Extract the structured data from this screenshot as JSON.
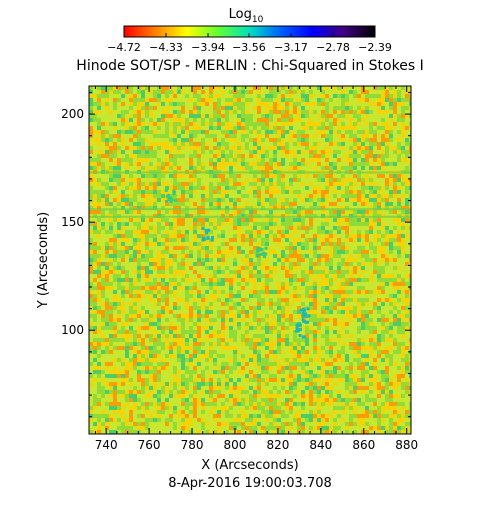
{
  "chart_data": {
    "type": "heatmap",
    "title": "Hinode SOT/SP - MERLIN : Chi-Squared in Stokes I",
    "xlabel": "X (Arcseconds)",
    "ylabel": "Y (Arcseconds)",
    "xlim": [
      732,
      882
    ],
    "ylim": [
      52,
      213
    ],
    "x_ticks": [
      740,
      760,
      780,
      800,
      820,
      840,
      860,
      880
    ],
    "y_ticks": [
      100,
      150,
      200
    ],
    "colorbar": {
      "label": "Log",
      "label_sub": "10",
      "range": [
        -4.72,
        -2.39
      ],
      "ticks": [
        "-4.72",
        "-4.33",
        "-3.94",
        "-3.56",
        "-3.17",
        "-2.78",
        "-2.39"
      ],
      "colors": [
        "#ff0000",
        "#ff8000",
        "#ffff00",
        "#60ff30",
        "#00e0c0",
        "#0060ff",
        "#0000ff",
        "#400080",
        "#000000"
      ]
    },
    "field_colors": [
      "#ffd000",
      "#c8e830",
      "#8ad838",
      "#ff9000",
      "#38c870"
    ],
    "features": [
      {
        "x": 787,
        "y": 145,
        "level": -3.6
      },
      {
        "x": 770,
        "y": 163,
        "level": -3.9
      },
      {
        "x": 830,
        "y": 100,
        "level": -3.5
      },
      {
        "x": 833,
        "y": 107,
        "level": -3.6
      },
      {
        "x": 812,
        "y": 136,
        "level": -4.0
      }
    ],
    "horizontal_streaks_y": [
      152.5,
      156,
      173
    ]
  },
  "timestamp": "8-Apr-2016 19:00:03.708"
}
